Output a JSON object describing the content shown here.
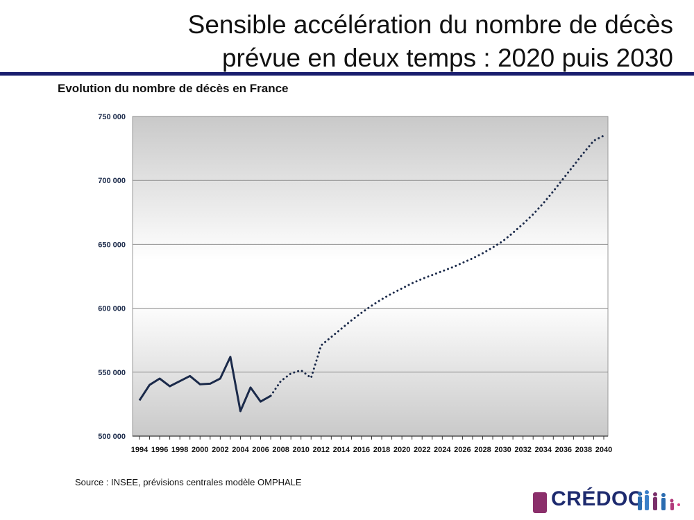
{
  "slide": {
    "title_line1": "Sensible accélération du nombre de décès",
    "title_line2": "prévue en deux temps : 2020 puis 2030"
  },
  "chart_title": "Evolution du nombre de décès en France",
  "source_note": "Source : INSEE, prévisions centrales modèle OMPHALE",
  "logo": {
    "text": "CRÉDOC"
  },
  "colors": {
    "title_rule": "#1a1e6e",
    "series": "#1b2a4a",
    "logo_text": "#1d2a6e",
    "logo_accent": "#8b2f6b"
  },
  "chart_data": {
    "type": "line",
    "title": "Evolution du nombre de décès en France",
    "xlabel": "",
    "ylabel": "",
    "ylim": [
      500000,
      750000
    ],
    "yticks": [
      500000,
      550000,
      600000,
      650000,
      700000,
      750000
    ],
    "ytick_labels": [
      "500 000",
      "550 000",
      "600 000",
      "650 000",
      "700 000",
      "750 000"
    ],
    "xlim": [
      1994,
      2040
    ],
    "xticks": [
      1994,
      1996,
      1998,
      2000,
      2002,
      2004,
      2006,
      2008,
      2010,
      2012,
      2014,
      2016,
      2018,
      2020,
      2022,
      2024,
      2026,
      2028,
      2030,
      2032,
      2034,
      2036,
      2038,
      2040
    ],
    "grid": true,
    "series": [
      {
        "style": "solid",
        "x": [
          1994,
          1995,
          1996,
          1997,
          1998,
          1999,
          2000,
          2001,
          2002,
          2003,
          2004,
          2005,
          2006,
          2007
        ],
        "values": [
          528000,
          540000,
          545000,
          539000,
          543000,
          547000,
          540500,
          541000,
          545000,
          562000,
          519500,
          538000,
          527000,
          531500
        ]
      },
      {
        "style": "dotted",
        "x": [
          2007,
          2008,
          2009,
          2010,
          2011,
          2012,
          2013,
          2014,
          2015,
          2016,
          2017,
          2018,
          2019,
          2020,
          2021,
          2022,
          2023,
          2024,
          2025,
          2026,
          2027,
          2028,
          2029,
          2030,
          2031,
          2032,
          2033,
          2034,
          2035,
          2036,
          2037,
          2038,
          2039,
          2040
        ],
        "values": [
          531500,
          543000,
          549000,
          551500,
          545500,
          571000,
          577500,
          584000,
          590500,
          596500,
          602000,
          607000,
          611500,
          615500,
          619500,
          623000,
          626000,
          629000,
          632000,
          635500,
          639000,
          643000,
          647500,
          652500,
          659000,
          666000,
          673500,
          682000,
          691500,
          701500,
          711500,
          721500,
          731000,
          735000
        ]
      }
    ]
  }
}
